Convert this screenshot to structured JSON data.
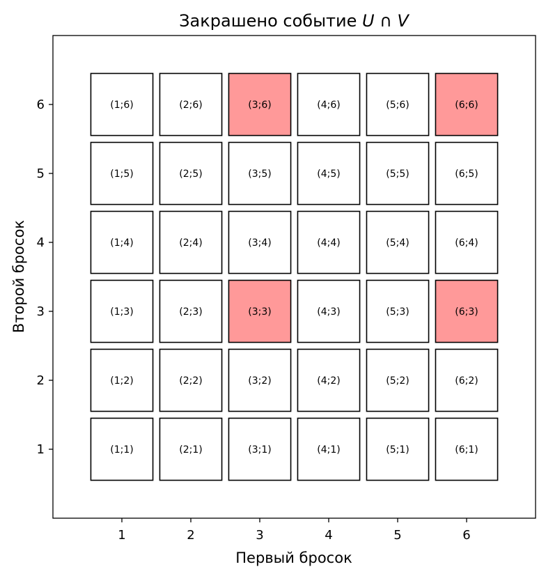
{
  "chart_data": {
    "type": "grid",
    "title_prefix": "Закрашено событие ",
    "title_math": "U ∩ V",
    "xlabel": "Первый бросок",
    "ylabel": "Второй бросок",
    "xlim": [
      0,
      7
    ],
    "ylim": [
      0,
      7
    ],
    "xticks": [
      1,
      2,
      3,
      4,
      5,
      6
    ],
    "yticks": [
      1,
      2,
      3,
      4,
      5,
      6
    ],
    "grid": false,
    "highlight_color": "#ff9999",
    "base_color": "#ffffff",
    "cells": [
      {
        "x": 1,
        "y": 1,
        "label": "(1;1)",
        "highlighted": false
      },
      {
        "x": 2,
        "y": 1,
        "label": "(2;1)",
        "highlighted": false
      },
      {
        "x": 3,
        "y": 1,
        "label": "(3;1)",
        "highlighted": false
      },
      {
        "x": 4,
        "y": 1,
        "label": "(4;1)",
        "highlighted": false
      },
      {
        "x": 5,
        "y": 1,
        "label": "(5;1)",
        "highlighted": false
      },
      {
        "x": 6,
        "y": 1,
        "label": "(6;1)",
        "highlighted": false
      },
      {
        "x": 1,
        "y": 2,
        "label": "(1;2)",
        "highlighted": false
      },
      {
        "x": 2,
        "y": 2,
        "label": "(2;2)",
        "highlighted": false
      },
      {
        "x": 3,
        "y": 2,
        "label": "(3;2)",
        "highlighted": false
      },
      {
        "x": 4,
        "y": 2,
        "label": "(4;2)",
        "highlighted": false
      },
      {
        "x": 5,
        "y": 2,
        "label": "(5;2)",
        "highlighted": false
      },
      {
        "x": 6,
        "y": 2,
        "label": "(6;2)",
        "highlighted": false
      },
      {
        "x": 1,
        "y": 3,
        "label": "(1;3)",
        "highlighted": false
      },
      {
        "x": 2,
        "y": 3,
        "label": "(2;3)",
        "highlighted": false
      },
      {
        "x": 3,
        "y": 3,
        "label": "(3;3)",
        "highlighted": true
      },
      {
        "x": 4,
        "y": 3,
        "label": "(4;3)",
        "highlighted": false
      },
      {
        "x": 5,
        "y": 3,
        "label": "(5;3)",
        "highlighted": false
      },
      {
        "x": 6,
        "y": 3,
        "label": "(6;3)",
        "highlighted": true
      },
      {
        "x": 1,
        "y": 4,
        "label": "(1;4)",
        "highlighted": false
      },
      {
        "x": 2,
        "y": 4,
        "label": "(2;4)",
        "highlighted": false
      },
      {
        "x": 3,
        "y": 4,
        "label": "(3;4)",
        "highlighted": false
      },
      {
        "x": 4,
        "y": 4,
        "label": "(4;4)",
        "highlighted": false
      },
      {
        "x": 5,
        "y": 4,
        "label": "(5;4)",
        "highlighted": false
      },
      {
        "x": 6,
        "y": 4,
        "label": "(6;4)",
        "highlighted": false
      },
      {
        "x": 1,
        "y": 5,
        "label": "(1;5)",
        "highlighted": false
      },
      {
        "x": 2,
        "y": 5,
        "label": "(2;5)",
        "highlighted": false
      },
      {
        "x": 3,
        "y": 5,
        "label": "(3;5)",
        "highlighted": false
      },
      {
        "x": 4,
        "y": 5,
        "label": "(4;5)",
        "highlighted": false
      },
      {
        "x": 5,
        "y": 5,
        "label": "(5;5)",
        "highlighted": false
      },
      {
        "x": 6,
        "y": 5,
        "label": "(6;5)",
        "highlighted": false
      },
      {
        "x": 1,
        "y": 6,
        "label": "(1;6)",
        "highlighted": false
      },
      {
        "x": 2,
        "y": 6,
        "label": "(2;6)",
        "highlighted": false
      },
      {
        "x": 3,
        "y": 6,
        "label": "(3;6)",
        "highlighted": true
      },
      {
        "x": 4,
        "y": 6,
        "label": "(4;6)",
        "highlighted": false
      },
      {
        "x": 5,
        "y": 6,
        "label": "(5;6)",
        "highlighted": false
      },
      {
        "x": 6,
        "y": 6,
        "label": "(6;6)",
        "highlighted": true
      }
    ]
  }
}
